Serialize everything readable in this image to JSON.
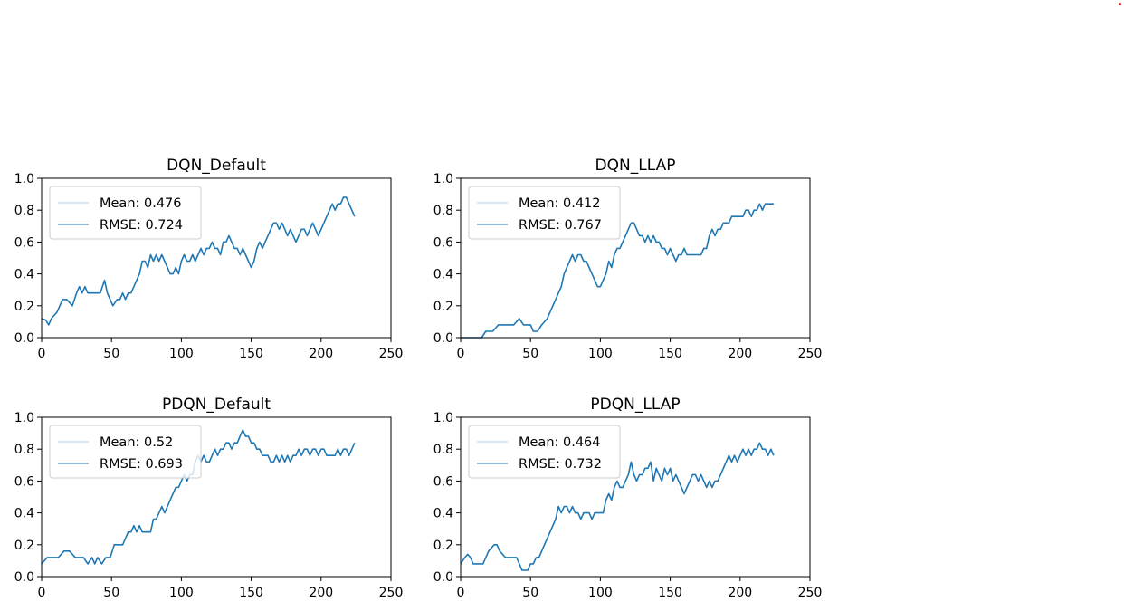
{
  "figure": {
    "line_color": "#1f77b4",
    "mean_line_color": "#a6d6e0"
  },
  "chart_data": [
    {
      "type": "line",
      "title": "DQN_Default",
      "xlabel": "",
      "ylabel": "",
      "xlim": [
        0,
        250
      ],
      "ylim": [
        0.0,
        1.0
      ],
      "xticks": [
        "0",
        "50",
        "100",
        "150",
        "200",
        "250"
      ],
      "yticks": [
        "0.0",
        "0.2",
        "0.4",
        "0.6",
        "0.8",
        "1.0"
      ],
      "legend": [
        "Mean: 0.476",
        "RMSE: 0.724"
      ],
      "legend_position": "upper left",
      "series": [
        {
          "x": [
            0,
            3,
            5,
            7,
            9,
            11,
            13,
            15,
            18,
            22,
            25,
            27,
            29,
            31,
            33,
            35,
            38,
            42,
            45,
            47,
            49,
            51,
            54,
            56,
            58,
            60,
            62,
            64,
            66,
            68,
            70,
            72,
            74,
            76,
            78,
            80,
            82,
            84,
            86,
            88,
            90,
            92,
            94,
            96,
            98,
            100,
            102,
            104,
            106,
            108,
            110,
            112,
            114,
            116,
            118,
            120,
            122,
            124,
            126,
            128,
            130,
            132,
            134,
            136,
            138,
            140,
            142,
            144,
            146,
            148,
            150,
            152,
            154,
            156,
            158,
            160,
            162,
            164,
            166,
            168,
            170,
            172,
            174,
            176,
            178,
            180,
            182,
            184,
            186,
            188,
            190,
            192,
            194,
            196,
            198,
            200,
            202,
            204,
            206,
            208,
            210,
            212,
            214,
            216,
            218,
            220,
            222,
            224
          ],
          "y": [
            0.12,
            0.11,
            0.08,
            0.12,
            0.14,
            0.16,
            0.2,
            0.24,
            0.24,
            0.2,
            0.28,
            0.32,
            0.28,
            0.32,
            0.28,
            0.28,
            0.28,
            0.28,
            0.36,
            0.28,
            0.24,
            0.2,
            0.24,
            0.24,
            0.28,
            0.24,
            0.28,
            0.28,
            0.32,
            0.36,
            0.4,
            0.48,
            0.48,
            0.44,
            0.52,
            0.48,
            0.52,
            0.48,
            0.52,
            0.48,
            0.44,
            0.4,
            0.4,
            0.44,
            0.4,
            0.48,
            0.52,
            0.48,
            0.48,
            0.52,
            0.48,
            0.52,
            0.56,
            0.52,
            0.56,
            0.56,
            0.6,
            0.56,
            0.56,
            0.52,
            0.6,
            0.6,
            0.64,
            0.6,
            0.56,
            0.56,
            0.52,
            0.56,
            0.52,
            0.48,
            0.44,
            0.48,
            0.56,
            0.6,
            0.56,
            0.6,
            0.64,
            0.68,
            0.72,
            0.72,
            0.68,
            0.72,
            0.68,
            0.64,
            0.68,
            0.64,
            0.6,
            0.64,
            0.68,
            0.68,
            0.64,
            0.68,
            0.72,
            0.68,
            0.64,
            0.68,
            0.72,
            0.76,
            0.8,
            0.84,
            0.8,
            0.84,
            0.84,
            0.88,
            0.88,
            0.84,
            0.8,
            0.76
          ]
        }
      ]
    },
    {
      "type": "line",
      "title": "DQN_LLAP",
      "xlabel": "",
      "ylabel": "",
      "xlim": [
        0,
        250
      ],
      "ylim": [
        0.0,
        1.0
      ],
      "xticks": [
        "0",
        "50",
        "100",
        "150",
        "200",
        "250"
      ],
      "yticks": [
        "0.0",
        "0.2",
        "0.4",
        "0.6",
        "0.8",
        "1.0"
      ],
      "legend": [
        "Mean: 0.412",
        "RMSE: 0.767"
      ],
      "legend_position": "upper left",
      "series": [
        {
          "x": [
            0,
            15,
            18,
            20,
            23,
            27,
            30,
            33,
            38,
            42,
            45,
            48,
            50,
            52,
            55,
            58,
            62,
            64,
            66,
            68,
            70,
            72,
            74,
            76,
            78,
            80,
            82,
            84,
            86,
            88,
            90,
            92,
            94,
            96,
            98,
            100,
            102,
            104,
            106,
            108,
            110,
            112,
            114,
            116,
            118,
            120,
            122,
            124,
            126,
            128,
            130,
            132,
            134,
            136,
            138,
            140,
            142,
            144,
            146,
            148,
            150,
            152,
            154,
            156,
            158,
            160,
            162,
            164,
            166,
            168,
            170,
            172,
            174,
            176,
            178,
            180,
            182,
            184,
            186,
            188,
            190,
            192,
            194,
            196,
            198,
            200,
            202,
            204,
            206,
            208,
            210,
            212,
            214,
            216,
            218,
            220,
            222,
            224
          ],
          "y": [
            0.0,
            0.0,
            0.04,
            0.04,
            0.04,
            0.08,
            0.08,
            0.08,
            0.08,
            0.12,
            0.08,
            0.08,
            0.08,
            0.04,
            0.04,
            0.08,
            0.12,
            0.16,
            0.2,
            0.24,
            0.28,
            0.32,
            0.4,
            0.44,
            0.48,
            0.52,
            0.48,
            0.52,
            0.52,
            0.48,
            0.48,
            0.44,
            0.4,
            0.36,
            0.32,
            0.32,
            0.36,
            0.4,
            0.48,
            0.44,
            0.52,
            0.56,
            0.56,
            0.6,
            0.64,
            0.68,
            0.72,
            0.72,
            0.68,
            0.64,
            0.64,
            0.6,
            0.64,
            0.6,
            0.64,
            0.6,
            0.6,
            0.56,
            0.56,
            0.52,
            0.56,
            0.52,
            0.48,
            0.52,
            0.52,
            0.56,
            0.52,
            0.52,
            0.52,
            0.52,
            0.52,
            0.52,
            0.56,
            0.56,
            0.64,
            0.68,
            0.64,
            0.68,
            0.68,
            0.72,
            0.72,
            0.72,
            0.76,
            0.76,
            0.76,
            0.76,
            0.76,
            0.8,
            0.8,
            0.76,
            0.8,
            0.8,
            0.84,
            0.8,
            0.84,
            0.84,
            0.84,
            0.84
          ]
        }
      ]
    },
    {
      "type": "line",
      "title": "PDQN_Default",
      "xlabel": "",
      "ylabel": "",
      "xlim": [
        0,
        250
      ],
      "ylim": [
        0.0,
        1.0
      ],
      "xticks": [
        "0",
        "50",
        "100",
        "150",
        "200",
        "250"
      ],
      "yticks": [
        "0.0",
        "0.2",
        "0.4",
        "0.6",
        "0.8",
        "1.0"
      ],
      "legend": [
        "Mean: 0.52",
        "RMSE: 0.693"
      ],
      "legend_position": "upper left",
      "series": [
        {
          "x": [
            0,
            4,
            8,
            12,
            16,
            20,
            24,
            28,
            30,
            33,
            36,
            38,
            40,
            43,
            46,
            49,
            52,
            55,
            58,
            60,
            62,
            64,
            66,
            68,
            70,
            72,
            74,
            76,
            78,
            80,
            82,
            84,
            86,
            88,
            90,
            92,
            94,
            96,
            98,
            100,
            102,
            104,
            106,
            108,
            110,
            112,
            114,
            116,
            118,
            120,
            122,
            124,
            126,
            128,
            130,
            132,
            134,
            136,
            138,
            140,
            142,
            144,
            146,
            148,
            150,
            152,
            154,
            156,
            158,
            160,
            162,
            164,
            166,
            168,
            170,
            172,
            174,
            176,
            178,
            180,
            182,
            184,
            186,
            188,
            190,
            192,
            194,
            196,
            198,
            200,
            202,
            204,
            206,
            208,
            210,
            212,
            214,
            216,
            218,
            220,
            222,
            224
          ],
          "y": [
            0.08,
            0.12,
            0.12,
            0.12,
            0.16,
            0.16,
            0.12,
            0.12,
            0.12,
            0.08,
            0.12,
            0.08,
            0.12,
            0.08,
            0.12,
            0.12,
            0.2,
            0.2,
            0.2,
            0.24,
            0.28,
            0.28,
            0.32,
            0.28,
            0.32,
            0.28,
            0.28,
            0.28,
            0.28,
            0.36,
            0.36,
            0.4,
            0.44,
            0.4,
            0.44,
            0.48,
            0.52,
            0.56,
            0.56,
            0.6,
            0.64,
            0.6,
            0.64,
            0.64,
            0.72,
            0.76,
            0.72,
            0.76,
            0.72,
            0.72,
            0.76,
            0.8,
            0.76,
            0.8,
            0.8,
            0.84,
            0.84,
            0.8,
            0.84,
            0.84,
            0.88,
            0.92,
            0.88,
            0.88,
            0.84,
            0.84,
            0.8,
            0.8,
            0.76,
            0.76,
            0.76,
            0.72,
            0.72,
            0.76,
            0.72,
            0.76,
            0.72,
            0.76,
            0.72,
            0.76,
            0.76,
            0.8,
            0.76,
            0.8,
            0.8,
            0.76,
            0.8,
            0.8,
            0.76,
            0.8,
            0.8,
            0.76,
            0.76,
            0.76,
            0.76,
            0.8,
            0.76,
            0.8,
            0.8,
            0.76,
            0.8,
            0.84
          ]
        }
      ]
    },
    {
      "type": "line",
      "title": "PDQN_LLAP",
      "xlabel": "",
      "ylabel": "",
      "xlim": [
        0,
        250
      ],
      "ylim": [
        0.0,
        1.0
      ],
      "xticks": [
        "0",
        "50",
        "100",
        "150",
        "200",
        "250"
      ],
      "yticks": [
        "0.0",
        "0.2",
        "0.4",
        "0.6",
        "0.8",
        "1.0"
      ],
      "legend": [
        "Mean: 0.464",
        "RMSE: 0.732"
      ],
      "legend_position": "upper left",
      "series": [
        {
          "x": [
            0,
            3,
            5,
            7,
            9,
            12,
            16,
            18,
            20,
            24,
            26,
            28,
            32,
            36,
            40,
            42,
            44,
            46,
            48,
            50,
            52,
            54,
            56,
            58,
            60,
            62,
            64,
            66,
            68,
            70,
            72,
            74,
            76,
            78,
            80,
            82,
            84,
            86,
            88,
            90,
            92,
            94,
            96,
            98,
            100,
            102,
            104,
            106,
            108,
            110,
            112,
            114,
            116,
            118,
            120,
            122,
            124,
            126,
            128,
            130,
            132,
            134,
            136,
            138,
            140,
            142,
            144,
            146,
            148,
            150,
            152,
            154,
            156,
            158,
            160,
            162,
            164,
            166,
            168,
            170,
            172,
            174,
            176,
            178,
            180,
            182,
            184,
            186,
            188,
            190,
            192,
            194,
            196,
            198,
            200,
            202,
            204,
            206,
            208,
            210,
            212,
            214,
            216,
            218,
            220,
            222,
            224
          ],
          "y": [
            0.08,
            0.12,
            0.14,
            0.12,
            0.08,
            0.08,
            0.08,
            0.12,
            0.16,
            0.2,
            0.2,
            0.16,
            0.12,
            0.12,
            0.12,
            0.08,
            0.04,
            0.04,
            0.04,
            0.08,
            0.08,
            0.12,
            0.12,
            0.16,
            0.2,
            0.24,
            0.28,
            0.32,
            0.36,
            0.44,
            0.4,
            0.44,
            0.44,
            0.4,
            0.44,
            0.4,
            0.4,
            0.36,
            0.4,
            0.4,
            0.4,
            0.36,
            0.4,
            0.4,
            0.4,
            0.4,
            0.48,
            0.52,
            0.48,
            0.56,
            0.6,
            0.56,
            0.56,
            0.6,
            0.64,
            0.72,
            0.64,
            0.6,
            0.64,
            0.64,
            0.68,
            0.68,
            0.72,
            0.6,
            0.68,
            0.64,
            0.6,
            0.68,
            0.64,
            0.68,
            0.6,
            0.64,
            0.6,
            0.56,
            0.52,
            0.56,
            0.6,
            0.64,
            0.64,
            0.6,
            0.64,
            0.6,
            0.56,
            0.6,
            0.56,
            0.6,
            0.6,
            0.64,
            0.68,
            0.72,
            0.76,
            0.72,
            0.76,
            0.72,
            0.76,
            0.8,
            0.76,
            0.8,
            0.76,
            0.8,
            0.8,
            0.84,
            0.8,
            0.8,
            0.76,
            0.8,
            0.76
          ]
        }
      ]
    }
  ]
}
